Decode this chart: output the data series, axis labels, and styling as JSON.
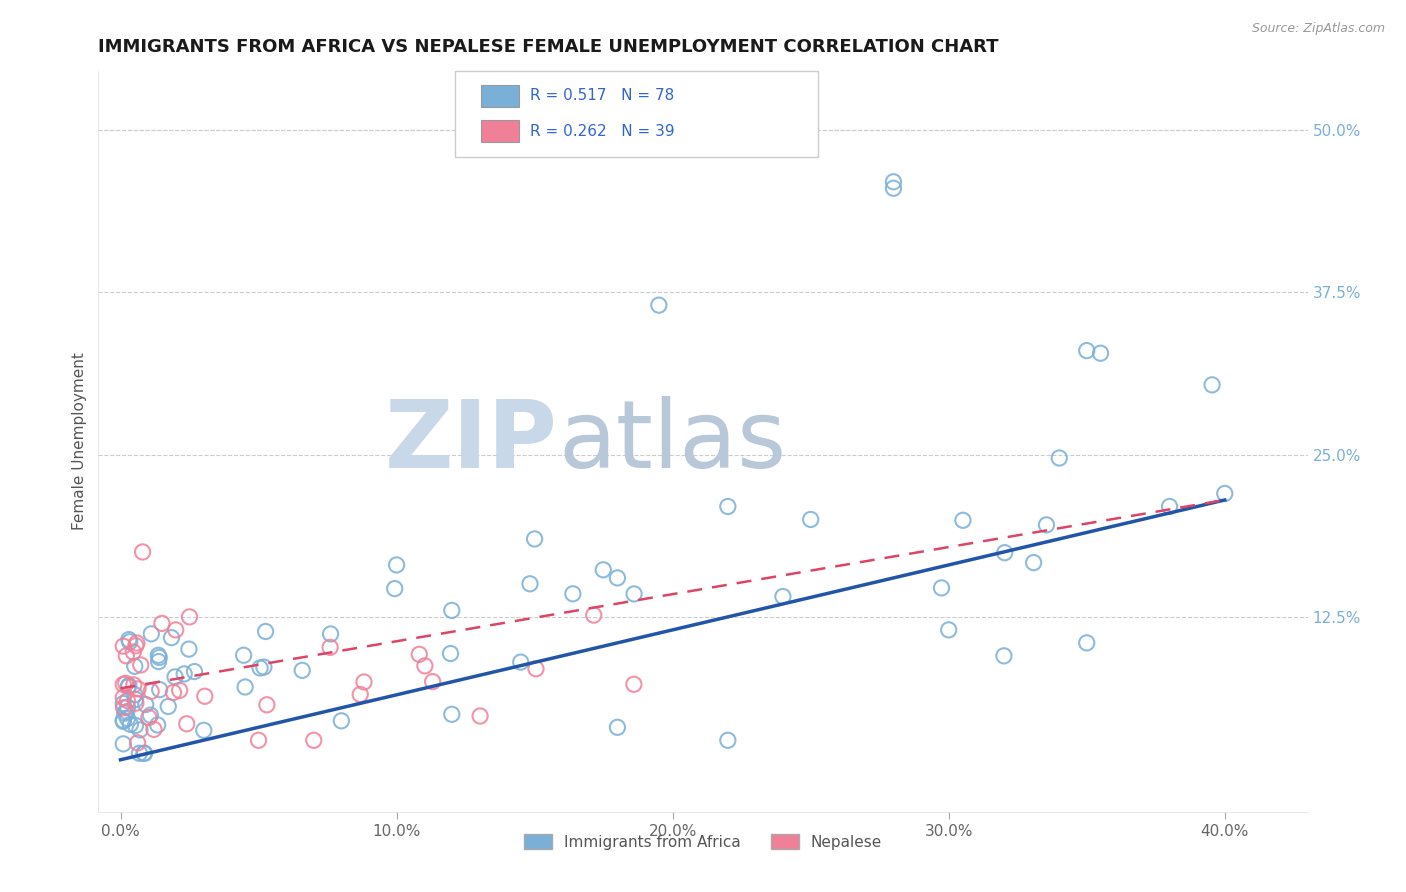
{
  "title": "IMMIGRANTS FROM AFRICA VS NEPALESE FEMALE UNEMPLOYMENT CORRELATION CHART",
  "source": "Source: ZipAtlas.com",
  "ylabel_left": "Female Unemployment",
  "x_tick_labels": [
    "0.0%",
    "10.0%",
    "20.0%",
    "30.0%",
    "40.0%"
  ],
  "x_tick_values": [
    0.0,
    0.1,
    0.2,
    0.3,
    0.4
  ],
  "y_tick_labels_right": [
    "12.5%",
    "25.0%",
    "37.5%",
    "50.0%"
  ],
  "y_tick_values_right": [
    0.125,
    0.25,
    0.375,
    0.5
  ],
  "xlim": [
    -0.008,
    0.43
  ],
  "ylim": [
    -0.025,
    0.545
  ],
  "legend_entries": [
    {
      "label": "R = 0.517   N = 78",
      "color": "#aec6e8"
    },
    {
      "label": "R = 0.262   N = 39",
      "color": "#f4b8c8"
    }
  ],
  "bottom_legend": [
    "Immigrants from Africa",
    "Nepalese"
  ],
  "blue_color": "#7ab0d8",
  "pink_color": "#f08098",
  "blue_line_color": "#2255aa",
  "pink_line_color": "#dd4466",
  "watermark_zip": "ZIP",
  "watermark_atlas": "atlas",
  "watermark_color_zip": "#c8d8e8",
  "watermark_color_atlas": "#b8c8d8",
  "background_color": "#ffffff",
  "grid_color": "#cccccc"
}
